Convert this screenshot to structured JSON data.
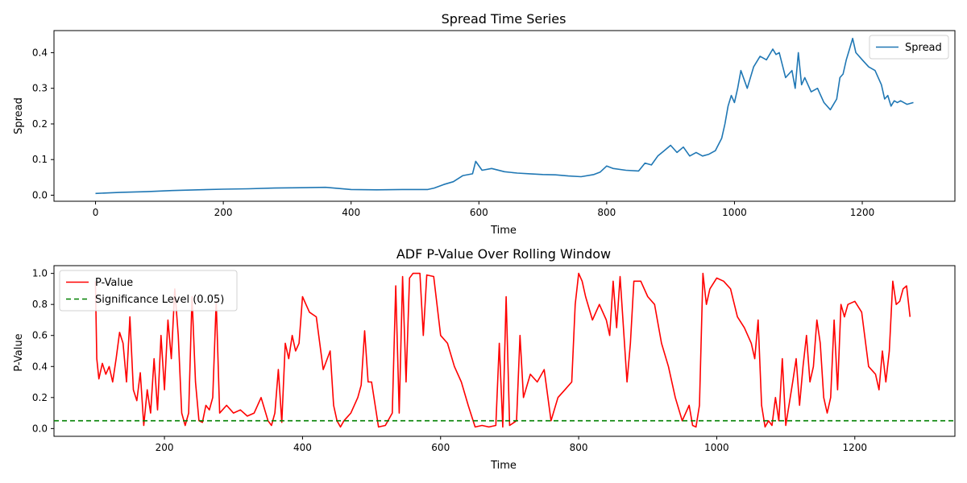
{
  "chart_data": [
    {
      "type": "line",
      "title": "Spread Time Series",
      "xlabel": "Time",
      "ylabel": "Spread",
      "xlim": [
        -65,
        1345
      ],
      "ylim": [
        -0.017,
        0.462
      ],
      "xticks": [
        0,
        200,
        400,
        600,
        800,
        1000,
        1200
      ],
      "xtick_labels": [
        "0",
        "200",
        "400",
        "600",
        "800",
        "1000",
        "1200"
      ],
      "yticks": [
        0.0,
        0.1,
        0.2,
        0.3,
        0.4
      ],
      "ytick_labels": [
        "0.0",
        "0.1",
        "0.2",
        "0.3",
        "0.4"
      ],
      "legend_position": "upper right",
      "series": [
        {
          "name": "Spread",
          "color": "#1f77b4",
          "x": [
            0,
            40,
            80,
            120,
            160,
            200,
            240,
            280,
            320,
            360,
            400,
            440,
            480,
            520,
            530,
            545,
            560,
            575,
            590,
            595,
            605,
            620,
            640,
            660,
            680,
            700,
            720,
            740,
            760,
            780,
            790,
            800,
            810,
            830,
            850,
            860,
            870,
            880,
            890,
            900,
            910,
            920,
            930,
            940,
            950,
            960,
            970,
            980,
            985,
            990,
            995,
            1000,
            1005,
            1010,
            1020,
            1030,
            1040,
            1050,
            1060,
            1065,
            1070,
            1080,
            1090,
            1095,
            1100,
            1105,
            1110,
            1120,
            1130,
            1140,
            1150,
            1160,
            1165,
            1170,
            1175,
            1180,
            1185,
            1190,
            1200,
            1210,
            1220,
            1230,
            1235,
            1240,
            1245,
            1250,
            1255,
            1260,
            1270,
            1280
          ],
          "y": [
            0.005,
            0.008,
            0.01,
            0.013,
            0.015,
            0.017,
            0.018,
            0.02,
            0.021,
            0.022,
            0.016,
            0.015,
            0.016,
            0.016,
            0.02,
            0.03,
            0.038,
            0.055,
            0.06,
            0.095,
            0.07,
            0.075,
            0.066,
            0.062,
            0.06,
            0.058,
            0.057,
            0.054,
            0.052,
            0.058,
            0.065,
            0.082,
            0.075,
            0.07,
            0.068,
            0.09,
            0.085,
            0.11,
            0.125,
            0.14,
            0.12,
            0.135,
            0.11,
            0.12,
            0.11,
            0.115,
            0.125,
            0.16,
            0.2,
            0.25,
            0.28,
            0.26,
            0.3,
            0.35,
            0.3,
            0.36,
            0.39,
            0.38,
            0.41,
            0.395,
            0.4,
            0.33,
            0.35,
            0.3,
            0.4,
            0.31,
            0.33,
            0.29,
            0.3,
            0.26,
            0.24,
            0.27,
            0.33,
            0.34,
            0.38,
            0.41,
            0.44,
            0.4,
            0.38,
            0.36,
            0.35,
            0.31,
            0.27,
            0.28,
            0.25,
            0.265,
            0.26,
            0.265,
            0.255,
            0.26
          ]
        }
      ]
    },
    {
      "type": "line",
      "title": "ADF P-Value Over Rolling Window",
      "xlabel": "Time",
      "ylabel": "P-Value",
      "xlim": [
        40,
        1345
      ],
      "ylim": [
        -0.05,
        1.05
      ],
      "xticks": [
        200,
        400,
        600,
        800,
        1000,
        1200
      ],
      "xtick_labels": [
        "200",
        "400",
        "600",
        "800",
        "1000",
        "1200"
      ],
      "yticks": [
        0.0,
        0.2,
        0.4,
        0.6,
        0.8,
        1.0
      ],
      "ytick_labels": [
        "0.0",
        "0.2",
        "0.4",
        "0.6",
        "0.8",
        "1.0"
      ],
      "legend_position": "upper left",
      "series": [
        {
          "name": "P-Value",
          "color": "#ff0000",
          "x": [
            100,
            102,
            105,
            110,
            115,
            120,
            125,
            130,
            135,
            140,
            145,
            150,
            155,
            160,
            165,
            170,
            175,
            180,
            185,
            190,
            195,
            200,
            205,
            210,
            215,
            220,
            225,
            230,
            235,
            240,
            245,
            250,
            255,
            260,
            265,
            270,
            275,
            280,
            290,
            300,
            310,
            320,
            330,
            340,
            350,
            355,
            360,
            365,
            370,
            375,
            380,
            385,
            390,
            395,
            400,
            405,
            410,
            420,
            430,
            440,
            445,
            450,
            455,
            460,
            470,
            480,
            485,
            490,
            495,
            500,
            510,
            520,
            530,
            535,
            540,
            545,
            550,
            555,
            560,
            570,
            575,
            580,
            590,
            600,
            610,
            620,
            630,
            640,
            650,
            660,
            670,
            680,
            685,
            690,
            695,
            700,
            710,
            715,
            720,
            730,
            740,
            750,
            760,
            770,
            780,
            790,
            795,
            800,
            805,
            810,
            820,
            830,
            840,
            845,
            850,
            855,
            860,
            870,
            875,
            880,
            890,
            900,
            910,
            920,
            930,
            940,
            950,
            960,
            965,
            970,
            975,
            980,
            985,
            990,
            1000,
            1010,
            1020,
            1030,
            1040,
            1050,
            1055,
            1060,
            1065,
            1070,
            1075,
            1080,
            1085,
            1090,
            1095,
            1100,
            1110,
            1115,
            1120,
            1125,
            1130,
            1135,
            1140,
            1145,
            1150,
            1155,
            1160,
            1165,
            1170,
            1175,
            1180,
            1185,
            1190,
            1200,
            1210,
            1220,
            1230,
            1235,
            1240,
            1245,
            1250,
            1255,
            1260,
            1265,
            1270,
            1275,
            1280
          ],
          "y": [
            0.95,
            0.45,
            0.32,
            0.42,
            0.35,
            0.4,
            0.3,
            0.45,
            0.62,
            0.55,
            0.3,
            0.72,
            0.25,
            0.18,
            0.36,
            0.02,
            0.25,
            0.1,
            0.45,
            0.12,
            0.6,
            0.25,
            0.7,
            0.45,
            0.9,
            0.6,
            0.1,
            0.02,
            0.1,
            0.85,
            0.3,
            0.05,
            0.04,
            0.15,
            0.12,
            0.2,
            0.82,
            0.1,
            0.15,
            0.1,
            0.12,
            0.08,
            0.1,
            0.2,
            0.05,
            0.02,
            0.1,
            0.38,
            0.04,
            0.55,
            0.45,
            0.6,
            0.5,
            0.55,
            0.85,
            0.8,
            0.75,
            0.72,
            0.38,
            0.5,
            0.15,
            0.05,
            0.01,
            0.05,
            0.1,
            0.2,
            0.28,
            0.63,
            0.3,
            0.3,
            0.01,
            0.02,
            0.1,
            0.92,
            0.1,
            0.98,
            0.3,
            0.97,
            1.0,
            1.0,
            0.6,
            0.99,
            0.98,
            0.6,
            0.55,
            0.4,
            0.3,
            0.15,
            0.01,
            0.02,
            0.01,
            0.02,
            0.55,
            0.01,
            0.85,
            0.02,
            0.05,
            0.6,
            0.2,
            0.35,
            0.3,
            0.38,
            0.05,
            0.2,
            0.25,
            0.3,
            0.8,
            1.0,
            0.95,
            0.85,
            0.7,
            0.8,
            0.7,
            0.6,
            0.95,
            0.65,
            0.98,
            0.3,
            0.55,
            0.95,
            0.95,
            0.85,
            0.8,
            0.55,
            0.4,
            0.2,
            0.05,
            0.15,
            0.02,
            0.01,
            0.15,
            1.0,
            0.8,
            0.9,
            0.97,
            0.95,
            0.9,
            0.72,
            0.65,
            0.55,
            0.45,
            0.7,
            0.15,
            0.01,
            0.05,
            0.02,
            0.2,
            0.05,
            0.45,
            0.02,
            0.3,
            0.45,
            0.15,
            0.4,
            0.6,
            0.3,
            0.4,
            0.7,
            0.55,
            0.2,
            0.1,
            0.2,
            0.7,
            0.25,
            0.8,
            0.72,
            0.8,
            0.82,
            0.75,
            0.4,
            0.35,
            0.25,
            0.5,
            0.3,
            0.5,
            0.95,
            0.8,
            0.82,
            0.9,
            0.92,
            0.72
          ]
        },
        {
          "name": "Significance Level (0.05)",
          "color": "#008000",
          "value": 0.05,
          "style": "dashed"
        }
      ]
    }
  ]
}
